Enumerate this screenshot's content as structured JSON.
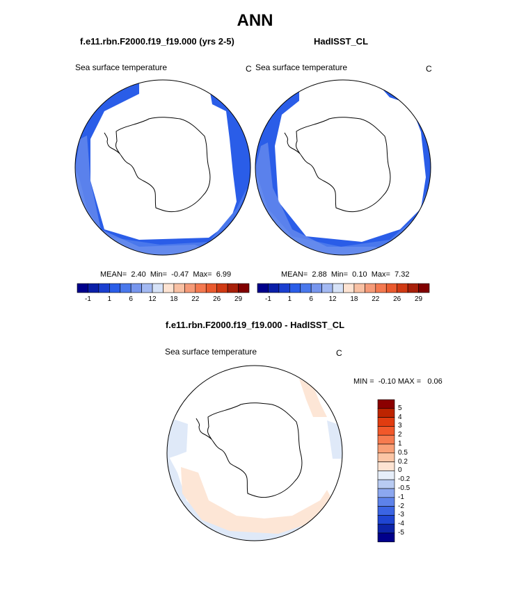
{
  "main_title": "ANN",
  "panels": [
    {
      "case_name": "f.e11.rbn.F2000.f19_f19.000 (yrs 2-5)",
      "field_label": "Sea surface temperature",
      "units": "C",
      "stats": {
        "mean_label": "MEAN=",
        "mean": "2.40",
        "min_label": "Min=",
        "min": "-0.47",
        "max_label": "Max=",
        "max": "6.99"
      }
    },
    {
      "case_name": "HadISST_CL",
      "field_label": "Sea surface temperature",
      "units": "C",
      "stats": {
        "mean_label": "MEAN=",
        "mean": "2.88",
        "min_label": "Min=",
        "min": "0.10",
        "max_label": "Max=",
        "max": "7.32"
      }
    }
  ],
  "diff_panel": {
    "title": "f.e11.rbn.F2000.f19_f19.000 - HadISST_CL",
    "field_label": "Sea surface temperature",
    "units": "C",
    "minmax_text": "MIN =  -0.10 MAX =   0.06"
  },
  "colorbar_main": {
    "colors": [
      "#00008b",
      "#0a1fa8",
      "#1b3fd0",
      "#2a5de8",
      "#4a78ec",
      "#7796ee",
      "#a3b9f2",
      "#d6e2f7",
      "#fde3d2",
      "#f8c0a3",
      "#f59a78",
      "#f47950",
      "#ea5a2e",
      "#d03a14",
      "#a8200a",
      "#800000"
    ],
    "tick_labels": [
      "-1",
      "1",
      "6",
      "12",
      "18",
      "22",
      "26",
      "29"
    ]
  },
  "colorbar_diff": {
    "colors": [
      "#8b0000",
      "#bd2400",
      "#e13c10",
      "#f2582a",
      "#f77b4f",
      "#f9a077",
      "#fbc5a5",
      "#fde3d2",
      "#e6eef9",
      "#b8cbf2",
      "#8ca7ef",
      "#5d82ea",
      "#3b64e3",
      "#1f45d2",
      "#0d24a8",
      "#00008b"
    ],
    "tick_labels": [
      "5",
      "4",
      "3",
      "2",
      "1",
      "0.5",
      "0.2",
      "0",
      "-0.2",
      "-0.5",
      "-1",
      "-2",
      "-3",
      "-4",
      "-5"
    ]
  }
}
